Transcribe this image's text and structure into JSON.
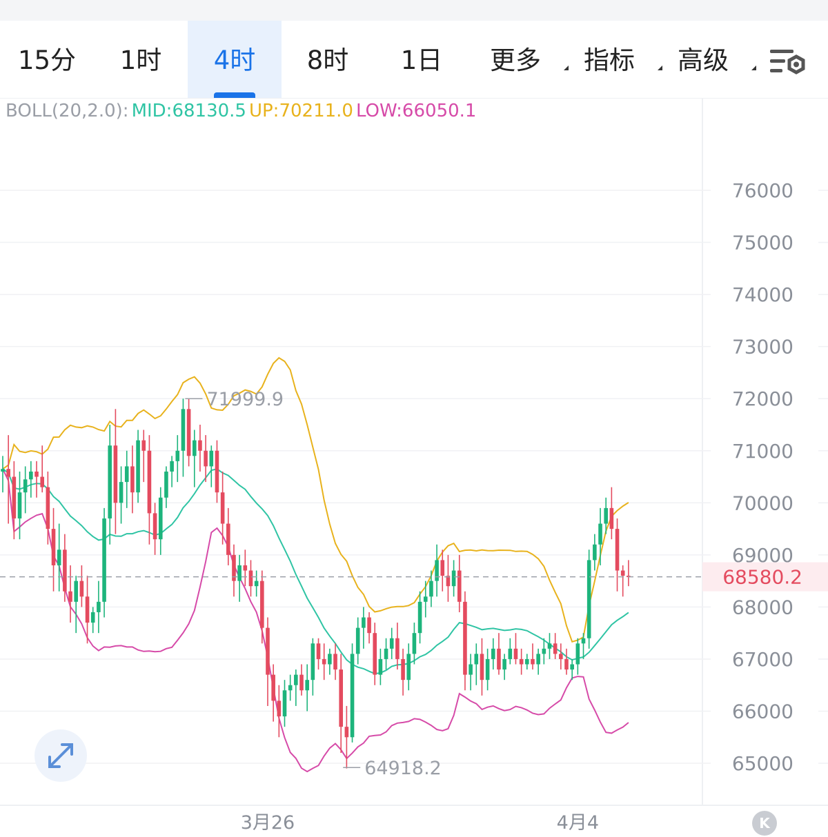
{
  "tabs": [
    {
      "label": "15分",
      "active": false
    },
    {
      "label": "1时",
      "active": false
    },
    {
      "label": "4时",
      "active": true
    },
    {
      "label": "8时",
      "active": false
    },
    {
      "label": "1日",
      "active": false
    },
    {
      "label": "更多",
      "active": false,
      "dropdown": true
    },
    {
      "label": "指标",
      "active": false,
      "dropdown": true
    },
    {
      "label": "高级",
      "active": false,
      "dropdown": true
    }
  ],
  "settings_icon": "chart-settings-icon",
  "indicator": {
    "name": "BOLL(20,2.0):",
    "mid": "MID:68130.5",
    "up": "UP:70211.0",
    "low": "LOW:66050.1"
  },
  "colors": {
    "up_candle": "#1db47c",
    "down_candle": "#e44b5f",
    "mid": "#2fc4a4",
    "upper": "#e8b21c",
    "lower": "#d64aa8",
    "active_tab": "#1a73e8",
    "price_tag": "#e44b5f"
  },
  "chart_data": {
    "type": "candlestick",
    "indicator": "Bollinger Bands (20, 2.0)",
    "y_ticks": [
      76000,
      75000,
      74000,
      73000,
      72000,
      71000,
      70000,
      69000,
      68000,
      67000,
      66000,
      65000
    ],
    "ylim": [
      64200,
      77700
    ],
    "x_labels": [
      {
        "text": "3月26",
        "candle_index": 47
      },
      {
        "text": "4月4",
        "candle_index": 102
      }
    ],
    "current_price": {
      "value": 68580.2,
      "label": "68580.2"
    },
    "annotations": [
      {
        "text": "71999.9",
        "value": 71999.9,
        "candle_index": 32
      },
      {
        "text": "64918.2",
        "value": 64918.2,
        "candle_index": 60
      }
    ],
    "candles": [
      [
        70600,
        70900,
        70200,
        70650
      ],
      [
        70650,
        71300,
        69600,
        70500
      ],
      [
        70500,
        70800,
        69300,
        69700
      ],
      [
        69700,
        70600,
        69300,
        70200
      ],
      [
        70200,
        70700,
        69800,
        70450
      ],
      [
        70450,
        70800,
        70100,
        70600
      ],
      [
        70600,
        70800,
        70100,
        70500
      ],
      [
        70500,
        71100,
        70200,
        70300
      ],
      [
        70300,
        70600,
        69200,
        69500
      ],
      [
        69500,
        69900,
        68300,
        68800
      ],
      [
        68800,
        69600,
        68300,
        69100
      ],
      [
        69100,
        69400,
        68100,
        68300
      ],
      [
        68300,
        68800,
        67700,
        68100
      ],
      [
        68100,
        68600,
        67500,
        68500
      ],
      [
        68500,
        68800,
        68000,
        68200
      ],
      [
        68200,
        68600,
        67300,
        67700
      ],
      [
        67700,
        68000,
        67500,
        67900
      ],
      [
        67900,
        68500,
        67500,
        68100
      ],
      [
        68100,
        69900,
        67800,
        69700
      ],
      [
        69700,
        71500,
        69200,
        71100
      ],
      [
        71100,
        71800,
        69400,
        70000
      ],
      [
        70000,
        70700,
        69600,
        70400
      ],
      [
        70400,
        71000,
        69900,
        70700
      ],
      [
        70700,
        71100,
        69800,
        70200
      ],
      [
        70200,
        71400,
        70000,
        71200
      ],
      [
        71200,
        71400,
        70400,
        71000
      ],
      [
        71000,
        71300,
        69200,
        69800
      ],
      [
        69800,
        70000,
        69000,
        69300
      ],
      [
        69300,
        70300,
        69000,
        70100
      ],
      [
        70100,
        70700,
        69900,
        70600
      ],
      [
        70600,
        70900,
        70300,
        70800
      ],
      [
        70800,
        71300,
        70400,
        71000
      ],
      [
        71000,
        72000,
        70500,
        71800
      ],
      [
        71800,
        72000,
        70700,
        70900
      ],
      [
        70900,
        71400,
        70300,
        71200
      ],
      [
        71200,
        71500,
        70600,
        71000
      ],
      [
        71000,
        71300,
        70400,
        70700
      ],
      [
        70700,
        71100,
        70300,
        71000
      ],
      [
        71000,
        71200,
        70000,
        70200
      ],
      [
        70200,
        70600,
        69200,
        69600
      ],
      [
        69600,
        69900,
        68800,
        69000
      ],
      [
        69000,
        69200,
        68200,
        68500
      ],
      [
        68500,
        69000,
        68100,
        68800
      ],
      [
        68800,
        69100,
        68400,
        68700
      ],
      [
        68700,
        68900,
        68200,
        68400
      ],
      [
        68400,
        68700,
        68200,
        68500
      ],
      [
        68500,
        68700,
        67300,
        67600
      ],
      [
        67600,
        67800,
        66100,
        66700
      ],
      [
        66700,
        66900,
        65800,
        66200
      ],
      [
        66200,
        66500,
        65500,
        65900
      ],
      [
        65900,
        66600,
        65700,
        66400
      ],
      [
        66400,
        66700,
        66200,
        66500
      ],
      [
        66500,
        66800,
        66100,
        66700
      ],
      [
        66700,
        66900,
        66300,
        66400
      ],
      [
        66400,
        66900,
        66000,
        66600
      ],
      [
        66600,
        67400,
        66300,
        67300
      ],
      [
        67300,
        67400,
        66800,
        67000
      ],
      [
        67000,
        67300,
        66600,
        66900
      ],
      [
        66900,
        67200,
        66700,
        67100
      ],
      [
        67100,
        67300,
        66600,
        66800
      ],
      [
        66800,
        67100,
        65200,
        65700
      ],
      [
        65700,
        66100,
        64900,
        65500
      ],
      [
        65500,
        67300,
        65400,
        67100
      ],
      [
        67100,
        67800,
        66900,
        67600
      ],
      [
        67600,
        68000,
        67200,
        67800
      ],
      [
        67800,
        67900,
        67300,
        67500
      ],
      [
        67500,
        67700,
        66500,
        66700
      ],
      [
        66700,
        67200,
        66500,
        67000
      ],
      [
        67000,
        67400,
        66800,
        67200
      ],
      [
        67200,
        67600,
        67000,
        67400
      ],
      [
        67400,
        67700,
        66800,
        67000
      ],
      [
        67000,
        67200,
        66300,
        66600
      ],
      [
        66600,
        67300,
        66400,
        67100
      ],
      [
        67100,
        67700,
        66900,
        67500
      ],
      [
        67500,
        68300,
        67300,
        68100
      ],
      [
        68100,
        68500,
        67800,
        68200
      ],
      [
        68200,
        68700,
        68000,
        68500
      ],
      [
        68500,
        69200,
        68200,
        68900
      ],
      [
        68900,
        69100,
        68300,
        68600
      ],
      [
        68600,
        69000,
        68100,
        68400
      ],
      [
        68400,
        68900,
        68200,
        68700
      ],
      [
        68700,
        69000,
        67900,
        68100
      ],
      [
        68100,
        68300,
        66400,
        66700
      ],
      [
        66700,
        67100,
        66400,
        66900
      ],
      [
        66900,
        67300,
        66500,
        67100
      ],
      [
        67100,
        67400,
        66300,
        66600
      ],
      [
        66600,
        67200,
        66400,
        67000
      ],
      [
        67000,
        67400,
        66800,
        67200
      ],
      [
        67200,
        67500,
        66700,
        66800
      ],
      [
        66800,
        67100,
        66600,
        67000
      ],
      [
        67000,
        67400,
        66900,
        67200
      ],
      [
        67200,
        67500,
        66900,
        67000
      ],
      [
        67000,
        67200,
        66700,
        66900
      ],
      [
        66900,
        67100,
        66800,
        67000
      ],
      [
        67000,
        67300,
        66800,
        66900
      ],
      [
        66900,
        67200,
        66700,
        67100
      ],
      [
        67100,
        67400,
        66900,
        67200
      ],
      [
        67200,
        67500,
        67000,
        67300
      ],
      [
        67300,
        67500,
        67000,
        67100
      ],
      [
        67100,
        67300,
        66800,
        67000
      ],
      [
        67000,
        67200,
        66700,
        66800
      ],
      [
        66800,
        67000,
        66600,
        66900
      ],
      [
        66900,
        67400,
        66700,
        67300
      ],
      [
        67300,
        67500,
        67000,
        67400
      ],
      [
        67400,
        69100,
        67200,
        68900
      ],
      [
        68900,
        69400,
        68700,
        69200
      ],
      [
        69200,
        69900,
        68800,
        69600
      ],
      [
        69600,
        70100,
        69400,
        69900
      ],
      [
        69900,
        70300,
        69300,
        69500
      ],
      [
        69500,
        69700,
        68300,
        68700
      ],
      [
        68700,
        68800,
        68200,
        68600
      ],
      [
        68600,
        68900,
        68400,
        68580
      ]
    ]
  }
}
